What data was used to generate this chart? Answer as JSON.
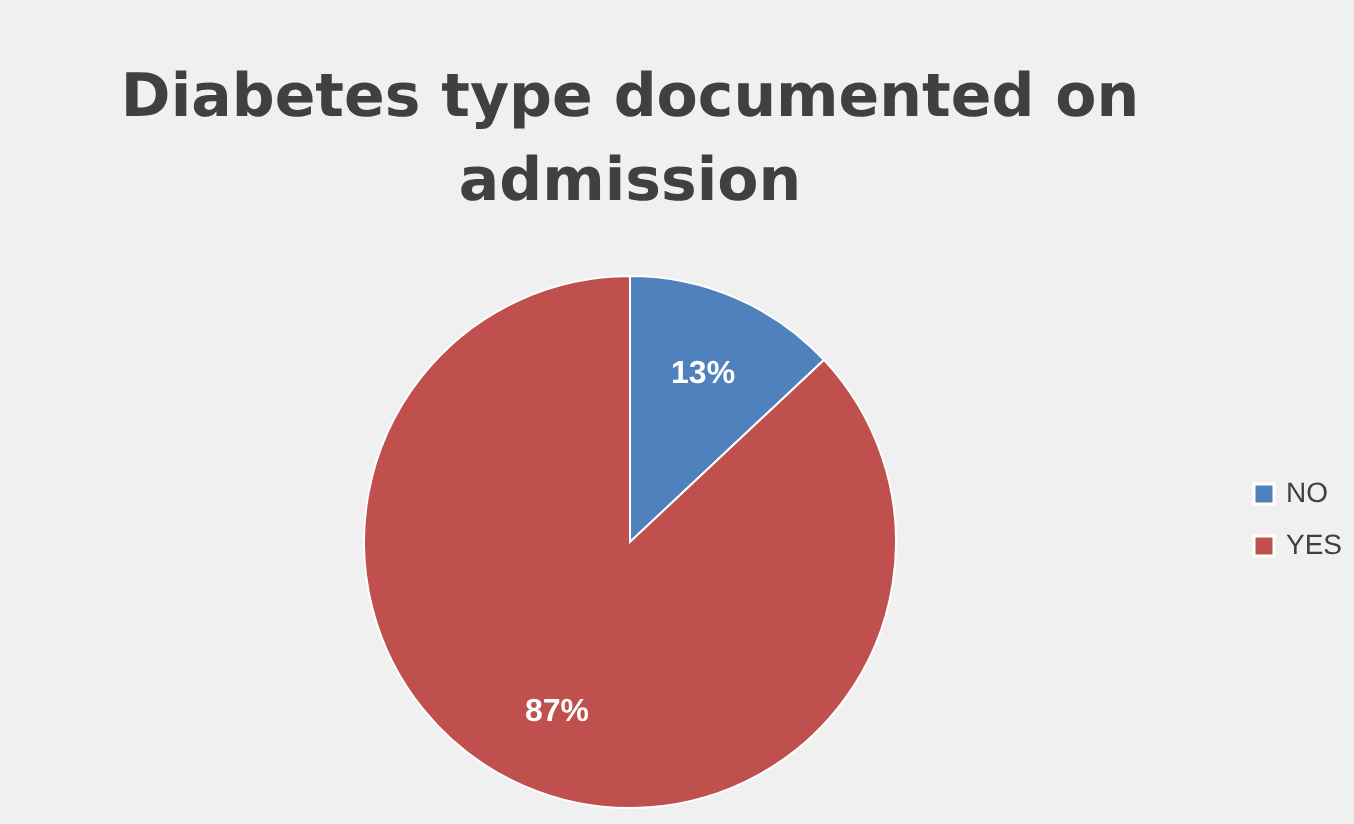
{
  "chart_data": {
    "type": "pie",
    "title": "Diabetes type documented on admission",
    "categories": [
      "NO",
      "YES"
    ],
    "values": [
      13,
      87
    ],
    "colors": [
      "#4f81bd",
      "#c0504d"
    ],
    "value_labels": [
      "13%",
      "87%"
    ],
    "legend": "right"
  }
}
